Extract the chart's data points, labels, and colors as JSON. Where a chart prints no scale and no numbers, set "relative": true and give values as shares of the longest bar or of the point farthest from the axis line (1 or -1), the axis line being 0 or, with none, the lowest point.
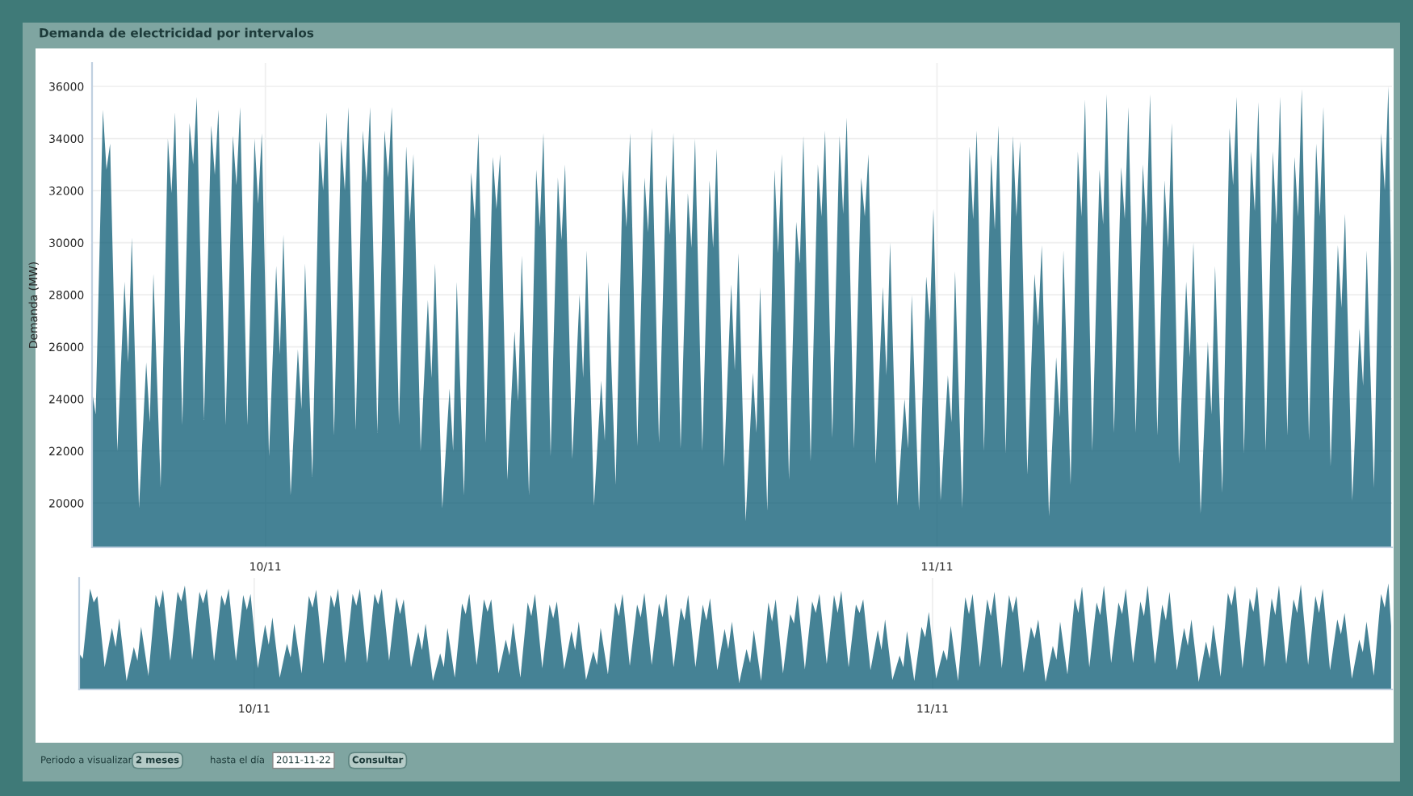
{
  "chart_data": [
    {
      "type": "area",
      "title": "Demanda de electricidad por intervalos",
      "ylabel": "Demanda (MW)",
      "xlim": [
        "2011-09-23T00:00",
        "2011-11-22T00:00"
      ],
      "xticks": [
        {
          "value": "2011-10-01",
          "label": "10/11"
        },
        {
          "value": "2011-11-01",
          "label": "11/11"
        }
      ],
      "ylim": [
        18300,
        36900
      ],
      "yticks": [
        20000,
        22000,
        24000,
        26000,
        28000,
        30000,
        32000,
        34000,
        36000
      ],
      "grid": true,
      "annotations": [
        "Periodo a visualizar",
        "2 meses",
        "hasta el día",
        "2011-11-22",
        "Consultar"
      ],
      "series": [
        {
          "color": "#0d5c75",
          "x": [
            "2011-09-23T00:00",
            "2011-09-23T04:00",
            "2011-09-23T12:00",
            "2011-09-23T16:00",
            "2011-09-23T20:00",
            "2011-09-24T04:00",
            "2011-09-24T12:00",
            "2011-09-24T16:00",
            "2011-09-24T20:00",
            "2011-09-25T04:00",
            "2011-09-25T12:00",
            "2011-09-25T16:00",
            "2011-09-25T20:00",
            "2011-09-26T04:00",
            "2011-09-26T12:00",
            "2011-09-26T16:00",
            "2011-09-26T20:00",
            "2011-09-27T04:00",
            "2011-09-27T12:00",
            "2011-09-27T16:00",
            "2011-09-27T20:00",
            "2011-09-28T04:00",
            "2011-09-28T12:00",
            "2011-09-28T16:00",
            "2011-09-28T20:00",
            "2011-09-29T04:00",
            "2011-09-29T12:00",
            "2011-09-29T16:00",
            "2011-09-29T20:00",
            "2011-09-30T04:00",
            "2011-09-30T12:00",
            "2011-09-30T16:00",
            "2011-09-30T20:00",
            "2011-10-01T04:00",
            "2011-10-01T12:00",
            "2011-10-01T16:00",
            "2011-10-01T20:00",
            "2011-10-02T04:00",
            "2011-10-02T12:00",
            "2011-10-02T16:00",
            "2011-10-02T20:00",
            "2011-10-03T04:00",
            "2011-10-03T12:00",
            "2011-10-03T16:00",
            "2011-10-03T20:00",
            "2011-10-04T04:00",
            "2011-10-04T12:00",
            "2011-10-04T16:00",
            "2011-10-04T20:00",
            "2011-10-05T04:00",
            "2011-10-05T12:00",
            "2011-10-05T16:00",
            "2011-10-05T20:00",
            "2011-10-06T04:00",
            "2011-10-06T12:00",
            "2011-10-06T16:00",
            "2011-10-06T20:00",
            "2011-10-07T04:00",
            "2011-10-07T12:00",
            "2011-10-07T16:00",
            "2011-10-07T20:00",
            "2011-10-08T04:00",
            "2011-10-08T12:00",
            "2011-10-08T16:00",
            "2011-10-08T20:00",
            "2011-10-09T04:00",
            "2011-10-09T12:00",
            "2011-10-09T16:00",
            "2011-10-09T20:00",
            "2011-10-10T04:00",
            "2011-10-10T12:00",
            "2011-10-10T16:00",
            "2011-10-10T20:00",
            "2011-10-11T04:00",
            "2011-10-11T12:00",
            "2011-10-11T16:00",
            "2011-10-11T20:00",
            "2011-10-12T04:00",
            "2011-10-12T12:00",
            "2011-10-12T16:00",
            "2011-10-12T20:00",
            "2011-10-13T04:00",
            "2011-10-13T12:00",
            "2011-10-13T16:00",
            "2011-10-13T20:00",
            "2011-10-14T04:00",
            "2011-10-14T12:00",
            "2011-10-14T16:00",
            "2011-10-14T20:00",
            "2011-10-15T04:00",
            "2011-10-15T12:00",
            "2011-10-15T16:00",
            "2011-10-15T20:00",
            "2011-10-16T04:00",
            "2011-10-16T12:00",
            "2011-10-16T16:00",
            "2011-10-16T20:00",
            "2011-10-17T04:00",
            "2011-10-17T12:00",
            "2011-10-17T16:00",
            "2011-10-17T20:00",
            "2011-10-18T04:00",
            "2011-10-18T12:00",
            "2011-10-18T16:00",
            "2011-10-18T20:00",
            "2011-10-19T04:00",
            "2011-10-19T12:00",
            "2011-10-19T16:00",
            "2011-10-19T20:00",
            "2011-10-20T04:00",
            "2011-10-20T12:00",
            "2011-10-20T16:00",
            "2011-10-20T20:00",
            "2011-10-21T04:00",
            "2011-10-21T12:00",
            "2011-10-21T16:00",
            "2011-10-21T20:00",
            "2011-10-22T04:00",
            "2011-10-22T12:00",
            "2011-10-22T16:00",
            "2011-10-22T20:00",
            "2011-10-23T04:00",
            "2011-10-23T12:00",
            "2011-10-23T16:00",
            "2011-10-23T20:00",
            "2011-10-24T04:00",
            "2011-10-24T12:00",
            "2011-10-24T16:00",
            "2011-10-24T20:00",
            "2011-10-25T04:00",
            "2011-10-25T12:00",
            "2011-10-25T16:00",
            "2011-10-25T20:00",
            "2011-10-26T04:00",
            "2011-10-26T12:00",
            "2011-10-26T16:00",
            "2011-10-26T20:00",
            "2011-10-27T04:00",
            "2011-10-27T12:00",
            "2011-10-27T16:00",
            "2011-10-27T20:00",
            "2011-10-28T04:00",
            "2011-10-28T12:00",
            "2011-10-28T16:00",
            "2011-10-28T20:00",
            "2011-10-29T04:00",
            "2011-10-29T12:00",
            "2011-10-29T16:00",
            "2011-10-29T20:00",
            "2011-10-30T04:00",
            "2011-10-30T12:00",
            "2011-10-30T16:00",
            "2011-10-30T20:00",
            "2011-10-31T04:00",
            "2011-10-31T12:00",
            "2011-10-31T16:00",
            "2011-10-31T20:00",
            "2011-11-01T04:00",
            "2011-11-01T12:00",
            "2011-11-01T16:00",
            "2011-11-01T20:00",
            "2011-11-02T04:00",
            "2011-11-02T12:00",
            "2011-11-02T16:00",
            "2011-11-02T20:00",
            "2011-11-03T04:00",
            "2011-11-03T12:00",
            "2011-11-03T16:00",
            "2011-11-03T20:00",
            "2011-11-04T04:00",
            "2011-11-04T12:00",
            "2011-11-04T16:00",
            "2011-11-04T20:00",
            "2011-11-05T04:00",
            "2011-11-05T12:00",
            "2011-11-05T16:00",
            "2011-11-05T20:00",
            "2011-11-06T04:00",
            "2011-11-06T12:00",
            "2011-11-06T16:00",
            "2011-11-06T20:00",
            "2011-11-07T04:00",
            "2011-11-07T12:00",
            "2011-11-07T16:00",
            "2011-11-07T20:00",
            "2011-11-08T04:00",
            "2011-11-08T12:00",
            "2011-11-08T16:00",
            "2011-11-08T20:00",
            "2011-11-09T04:00",
            "2011-11-09T12:00",
            "2011-11-09T16:00",
            "2011-11-09T20:00",
            "2011-11-10T04:00",
            "2011-11-10T12:00",
            "2011-11-10T16:00",
            "2011-11-10T20:00",
            "2011-11-11T04:00",
            "2011-11-11T12:00",
            "2011-11-11T16:00",
            "2011-11-11T20:00",
            "2011-11-12T04:00",
            "2011-11-12T12:00",
            "2011-11-12T16:00",
            "2011-11-12T20:00",
            "2011-11-13T04:00",
            "2011-11-13T12:00",
            "2011-11-13T16:00",
            "2011-11-13T20:00",
            "2011-11-14T04:00",
            "2011-11-14T12:00",
            "2011-11-14T16:00",
            "2011-11-14T20:00",
            "2011-11-15T04:00",
            "2011-11-15T12:00",
            "2011-11-15T16:00",
            "2011-11-15T20:00",
            "2011-11-16T04:00",
            "2011-11-16T12:00",
            "2011-11-16T16:00",
            "2011-11-16T20:00",
            "2011-11-17T04:00",
            "2011-11-17T12:00",
            "2011-11-17T16:00",
            "2011-11-17T20:00",
            "2011-11-18T04:00",
            "2011-11-18T12:00",
            "2011-11-18T16:00",
            "2011-11-18T20:00",
            "2011-11-19T04:00",
            "2011-11-19T12:00",
            "2011-11-19T16:00",
            "2011-11-19T20:00",
            "2011-11-20T04:00",
            "2011-11-20T12:00",
            "2011-11-20T16:00",
            "2011-11-20T20:00",
            "2011-11-21T04:00",
            "2011-11-21T12:00",
            "2011-11-21T16:00",
            "2011-11-21T20:00",
            "2011-11-21T23:00"
          ],
          "values": [
            24300,
            23400,
            35100,
            32800,
            33800,
            22000,
            28500,
            25400,
            30200,
            19800,
            25400,
            23100,
            28800,
            20600,
            34000,
            31900,
            35000,
            23000,
            34600,
            33000,
            35600,
            23200,
            34500,
            32600,
            35100,
            23000,
            34100,
            32200,
            35200,
            23000,
            34000,
            31500,
            34200,
            21800,
            29100,
            25700,
            30300,
            20300,
            25900,
            23600,
            29200,
            21000,
            33900,
            32000,
            35000,
            22600,
            34000,
            32000,
            35200,
            22800,
            34300,
            32300,
            35200,
            22700,
            34300,
            32500,
            35200,
            23000,
            33700,
            30800,
            33400,
            22000,
            27800,
            24800,
            29200,
            19800,
            24400,
            22000,
            28500,
            20300,
            32700,
            30900,
            34200,
            22300,
            33300,
            31300,
            33400,
            20900,
            26600,
            23900,
            29500,
            20300,
            32800,
            30600,
            34200,
            21800,
            32500,
            30100,
            33000,
            21700,
            28000,
            24800,
            29700,
            19900,
            24700,
            22400,
            28500,
            20700,
            32800,
            30600,
            34200,
            22200,
            32500,
            30400,
            34400,
            22300,
            32600,
            30300,
            34200,
            22100,
            31900,
            29800,
            34000,
            22000,
            32400,
            29800,
            33600,
            21400,
            28400,
            25100,
            29600,
            19300,
            25000,
            22700,
            28300,
            19700,
            32800,
            29600,
            33400,
            20900,
            30800,
            29200,
            34100,
            21600,
            33000,
            31000,
            34300,
            22500,
            34100,
            31100,
            34800,
            22100,
            32500,
            31000,
            33400,
            21500,
            28300,
            24900,
            30000,
            19900,
            24000,
            22100,
            28000,
            19700,
            28700,
            27000,
            31300,
            20100,
            24900,
            23100,
            28900,
            19800,
            33700,
            30900,
            34300,
            22000,
            33400,
            30500,
            34500,
            21900,
            34100,
            31000,
            33900,
            21100,
            28800,
            26800,
            29900,
            19500,
            25600,
            23300,
            29700,
            20700,
            33500,
            31000,
            35500,
            22000,
            32800,
            30700,
            35700,
            22700,
            32900,
            30900,
            35200,
            22700,
            33000,
            30600,
            35700,
            22600,
            32400,
            29800,
            34600,
            21500,
            28500,
            25600,
            30000,
            19600,
            26200,
            23400,
            29100,
            20400,
            34400,
            32200,
            35600,
            21900,
            33500,
            31200,
            35400,
            22000,
            33500,
            30700,
            35600,
            22600,
            33300,
            31000,
            35900,
            22400,
            33800,
            31000,
            35200,
            21400,
            29900,
            27500,
            31100,
            20100,
            26700,
            24500,
            29700,
            20600,
            34200,
            32000,
            36000,
            29000
          ]
        }
      ]
    },
    {
      "type": "area",
      "tick_labels": "x",
      "grid": true,
      "relative": true,
      "xlim": [
        "2011-09-23T00:00",
        "2011-11-22T00:00"
      ],
      "xticks": [
        {
          "value": "2011-10-01",
          "label": "10/11"
        },
        {
          "value": "2011-11-01",
          "label": "11/11"
        }
      ],
      "series": [
        {
          "color": "#0d5c75",
          "x": [
            "2011-09-23T00:00",
            "2011-09-23T04:00",
            "2011-09-23T12:00",
            "2011-09-23T16:00",
            "2011-09-23T20:00",
            "2011-09-24T04:00",
            "2011-09-24T12:00",
            "2011-09-24T16:00",
            "2011-09-24T20:00",
            "2011-09-25T04:00",
            "2011-09-25T12:00",
            "2011-09-25T16:00",
            "2011-09-25T20:00",
            "2011-09-26T04:00",
            "2011-09-26T12:00",
            "2011-09-26T16:00",
            "2011-09-26T20:00",
            "2011-09-27T04:00",
            "2011-09-27T12:00",
            "2011-09-27T16:00",
            "2011-09-27T20:00",
            "2011-09-28T04:00",
            "2011-09-28T12:00",
            "2011-09-28T16:00",
            "2011-09-28T20:00",
            "2011-09-29T04:00",
            "2011-09-29T12:00",
            "2011-09-29T16:00",
            "2011-09-29T20:00",
            "2011-09-30T04:00",
            "2011-09-30T12:00",
            "2011-09-30T16:00",
            "2011-09-30T20:00",
            "2011-10-01T04:00",
            "2011-10-01T12:00",
            "2011-10-01T16:00",
            "2011-10-01T20:00",
            "2011-10-02T04:00",
            "2011-10-02T12:00",
            "2011-10-02T16:00",
            "2011-10-02T20:00",
            "2011-10-03T04:00",
            "2011-10-03T12:00",
            "2011-10-03T16:00",
            "2011-10-03T20:00",
            "2011-10-04T04:00",
            "2011-10-04T12:00",
            "2011-10-04T16:00",
            "2011-10-04T20:00",
            "2011-10-05T04:00",
            "2011-10-05T12:00",
            "2011-10-05T16:00",
            "2011-10-05T20:00",
            "2011-10-06T04:00",
            "2011-10-06T12:00",
            "2011-10-06T16:00",
            "2011-10-06T20:00",
            "2011-10-07T04:00",
            "2011-10-07T12:00",
            "2011-10-07T16:00",
            "2011-10-07T20:00",
            "2011-10-08T04:00",
            "2011-10-08T12:00",
            "2011-10-08T16:00",
            "2011-10-08T20:00",
            "2011-10-09T04:00",
            "2011-10-09T12:00",
            "2011-10-09T16:00",
            "2011-10-09T20:00",
            "2011-10-10T04:00",
            "2011-10-10T12:00",
            "2011-10-10T16:00",
            "2011-10-10T20:00",
            "2011-10-11T04:00",
            "2011-10-11T12:00",
            "2011-10-11T16:00",
            "2011-10-11T20:00",
            "2011-10-12T04:00",
            "2011-10-12T12:00",
            "2011-10-12T16:00",
            "2011-10-12T20:00",
            "2011-10-13T04:00",
            "2011-10-13T12:00",
            "2011-10-13T16:00",
            "2011-10-13T20:00",
            "2011-10-14T04:00",
            "2011-10-14T12:00",
            "2011-10-14T16:00",
            "2011-10-14T20:00",
            "2011-10-15T04:00",
            "2011-10-15T12:00",
            "2011-10-15T16:00",
            "2011-10-15T20:00",
            "2011-10-16T04:00",
            "2011-10-16T12:00",
            "2011-10-16T16:00",
            "2011-10-16T20:00",
            "2011-10-17T04:00",
            "2011-10-17T12:00",
            "2011-10-17T16:00",
            "2011-10-17T20:00",
            "2011-10-18T04:00",
            "2011-10-18T12:00",
            "2011-10-18T16:00",
            "2011-10-18T20:00",
            "2011-10-19T04:00",
            "2011-10-19T12:00",
            "2011-10-19T16:00",
            "2011-10-19T20:00",
            "2011-10-20T04:00",
            "2011-10-20T12:00",
            "2011-10-20T16:00",
            "2011-10-20T20:00",
            "2011-10-21T04:00",
            "2011-10-21T12:00",
            "2011-10-21T16:00",
            "2011-10-21T20:00",
            "2011-10-22T04:00",
            "2011-10-22T12:00",
            "2011-10-22T16:00",
            "2011-10-22T20:00",
            "2011-10-23T04:00",
            "2011-10-23T12:00",
            "2011-10-23T16:00",
            "2011-10-23T20:00",
            "2011-10-24T04:00",
            "2011-10-24T12:00",
            "2011-10-24T16:00",
            "2011-10-24T20:00",
            "2011-10-25T04:00",
            "2011-10-25T12:00",
            "2011-10-25T16:00",
            "2011-10-25T20:00",
            "2011-10-26T04:00",
            "2011-10-26T12:00",
            "2011-10-26T16:00",
            "2011-10-26T20:00",
            "2011-10-27T04:00",
            "2011-10-27T12:00",
            "2011-10-27T16:00",
            "2011-10-27T20:00",
            "2011-10-28T04:00",
            "2011-10-28T12:00",
            "2011-10-28T16:00",
            "2011-10-28T20:00",
            "2011-10-29T04:00",
            "2011-10-29T12:00",
            "2011-10-29T16:00",
            "2011-10-29T20:00",
            "2011-10-30T04:00",
            "2011-10-30T12:00",
            "2011-10-30T16:00",
            "2011-10-30T20:00",
            "2011-10-31T04:00",
            "2011-10-31T12:00",
            "2011-10-31T16:00",
            "2011-10-31T20:00",
            "2011-11-01T04:00",
            "2011-11-01T12:00",
            "2011-11-01T16:00",
            "2011-11-01T20:00",
            "2011-11-02T04:00",
            "2011-11-02T12:00",
            "2011-11-02T16:00",
            "2011-11-02T20:00",
            "2011-11-03T04:00",
            "2011-11-03T12:00",
            "2011-11-03T16:00",
            "2011-11-03T20:00",
            "2011-11-04T04:00",
            "2011-11-04T12:00",
            "2011-11-04T16:00",
            "2011-11-04T20:00",
            "2011-11-05T04:00",
            "2011-11-05T12:00",
            "2011-11-05T16:00",
            "2011-11-05T20:00",
            "2011-11-06T04:00",
            "2011-11-06T12:00",
            "2011-11-06T16:00",
            "2011-11-06T20:00",
            "2011-11-07T04:00",
            "2011-11-07T12:00",
            "2011-11-07T16:00",
            "2011-11-07T20:00",
            "2011-11-08T04:00",
            "2011-11-08T12:00",
            "2011-11-08T16:00",
            "2011-11-08T20:00",
            "2011-11-09T04:00",
            "2011-11-09T12:00",
            "2011-11-09T16:00",
            "2011-11-09T20:00",
            "2011-11-10T04:00",
            "2011-11-10T12:00",
            "2011-11-10T16:00",
            "2011-11-10T20:00",
            "2011-11-11T04:00",
            "2011-11-11T12:00",
            "2011-11-11T16:00",
            "2011-11-11T20:00",
            "2011-11-12T04:00",
            "2011-11-12T12:00",
            "2011-11-12T16:00",
            "2011-11-12T20:00",
            "2011-11-13T04:00",
            "2011-11-13T12:00",
            "2011-11-13T16:00",
            "2011-11-13T20:00",
            "2011-11-14T04:00",
            "2011-11-14T12:00",
            "2011-11-14T16:00",
            "2011-11-14T20:00",
            "2011-11-15T04:00",
            "2011-11-15T12:00",
            "2011-11-15T16:00",
            "2011-11-15T20:00",
            "2011-11-16T04:00",
            "2011-11-16T12:00",
            "2011-11-16T16:00",
            "2011-11-16T20:00",
            "2011-11-17T04:00",
            "2011-11-17T12:00",
            "2011-11-17T16:00",
            "2011-11-17T20:00",
            "2011-11-18T04:00",
            "2011-11-18T12:00",
            "2011-11-18T16:00",
            "2011-11-18T20:00",
            "2011-11-19T04:00",
            "2011-11-19T12:00",
            "2011-11-19T16:00",
            "2011-11-19T20:00",
            "2011-11-20T04:00",
            "2011-11-20T12:00",
            "2011-11-20T16:00",
            "2011-11-20T20:00",
            "2011-11-21T04:00",
            "2011-11-21T12:00",
            "2011-11-21T16:00",
            "2011-11-21T20:00",
            "2011-11-21T23:00"
          ],
          "values": [
            0.34,
            0.29,
            0.95,
            0.82,
            0.88,
            0.21,
            0.58,
            0.4,
            0.67,
            0.08,
            0.4,
            0.27,
            0.59,
            0.13,
            0.89,
            0.77,
            0.94,
            0.27,
            0.92,
            0.83,
            0.98,
            0.28,
            0.92,
            0.81,
            0.95,
            0.27,
            0.89,
            0.79,
            0.95,
            0.27,
            0.89,
            0.75,
            0.9,
            0.2,
            0.61,
            0.42,
            0.68,
            0.11,
            0.43,
            0.3,
            0.62,
            0.15,
            0.88,
            0.77,
            0.94,
            0.24,
            0.89,
            0.77,
            0.95,
            0.25,
            0.9,
            0.79,
            0.95,
            0.25,
            0.9,
            0.8,
            0.95,
            0.27,
            0.87,
            0.71,
            0.85,
            0.21,
            0.54,
            0.37,
            0.62,
            0.08,
            0.34,
            0.21,
            0.58,
            0.11,
            0.81,
            0.71,
            0.9,
            0.23,
            0.85,
            0.73,
            0.85,
            0.15,
            0.47,
            0.32,
            0.63,
            0.11,
            0.82,
            0.69,
            0.9,
            0.2,
            0.8,
            0.67,
            0.83,
            0.19,
            0.55,
            0.37,
            0.64,
            0.09,
            0.36,
            0.23,
            0.58,
            0.14,
            0.82,
            0.69,
            0.9,
            0.22,
            0.8,
            0.68,
            0.91,
            0.23,
            0.81,
            0.68,
            0.9,
            0.21,
            0.77,
            0.65,
            0.89,
            0.21,
            0.8,
            0.65,
            0.86,
            0.18,
            0.57,
            0.38,
            0.64,
            0.06,
            0.38,
            0.25,
            0.56,
            0.08,
            0.82,
            0.64,
            0.85,
            0.15,
            0.71,
            0.62,
            0.89,
            0.19,
            0.83,
            0.72,
            0.9,
            0.24,
            0.89,
            0.72,
            0.93,
            0.21,
            0.8,
            0.72,
            0.85,
            0.18,
            0.56,
            0.37,
            0.66,
            0.09,
            0.32,
            0.21,
            0.55,
            0.08,
            0.59,
            0.49,
            0.73,
            0.1,
            0.37,
            0.27,
            0.6,
            0.08,
            0.87,
            0.71,
            0.9,
            0.21,
            0.85,
            0.69,
            0.92,
            0.2,
            0.89,
            0.72,
            0.88,
            0.16,
            0.59,
            0.48,
            0.66,
            0.07,
            0.41,
            0.28,
            0.64,
            0.14,
            0.86,
            0.72,
            0.97,
            0.21,
            0.82,
            0.7,
            0.98,
            0.25,
            0.82,
            0.71,
            0.95,
            0.25,
            0.83,
            0.69,
            0.98,
            0.24,
            0.8,
            0.65,
            0.92,
            0.18,
            0.58,
            0.41,
            0.66,
            0.07,
            0.45,
            0.29,
            0.61,
            0.12,
            0.91,
            0.79,
            0.98,
            0.2,
            0.86,
            0.73,
            0.97,
            0.21,
            0.86,
            0.7,
            0.98,
            0.24,
            0.85,
            0.72,
            0.99,
            0.23,
            0.88,
            0.72,
            0.95,
            0.18,
            0.66,
            0.52,
            0.72,
            0.1,
            0.47,
            0.35,
            0.64,
            0.13,
            0.9,
            0.77,
            1,
            0.6
          ]
        }
      ]
    }
  ]
}
